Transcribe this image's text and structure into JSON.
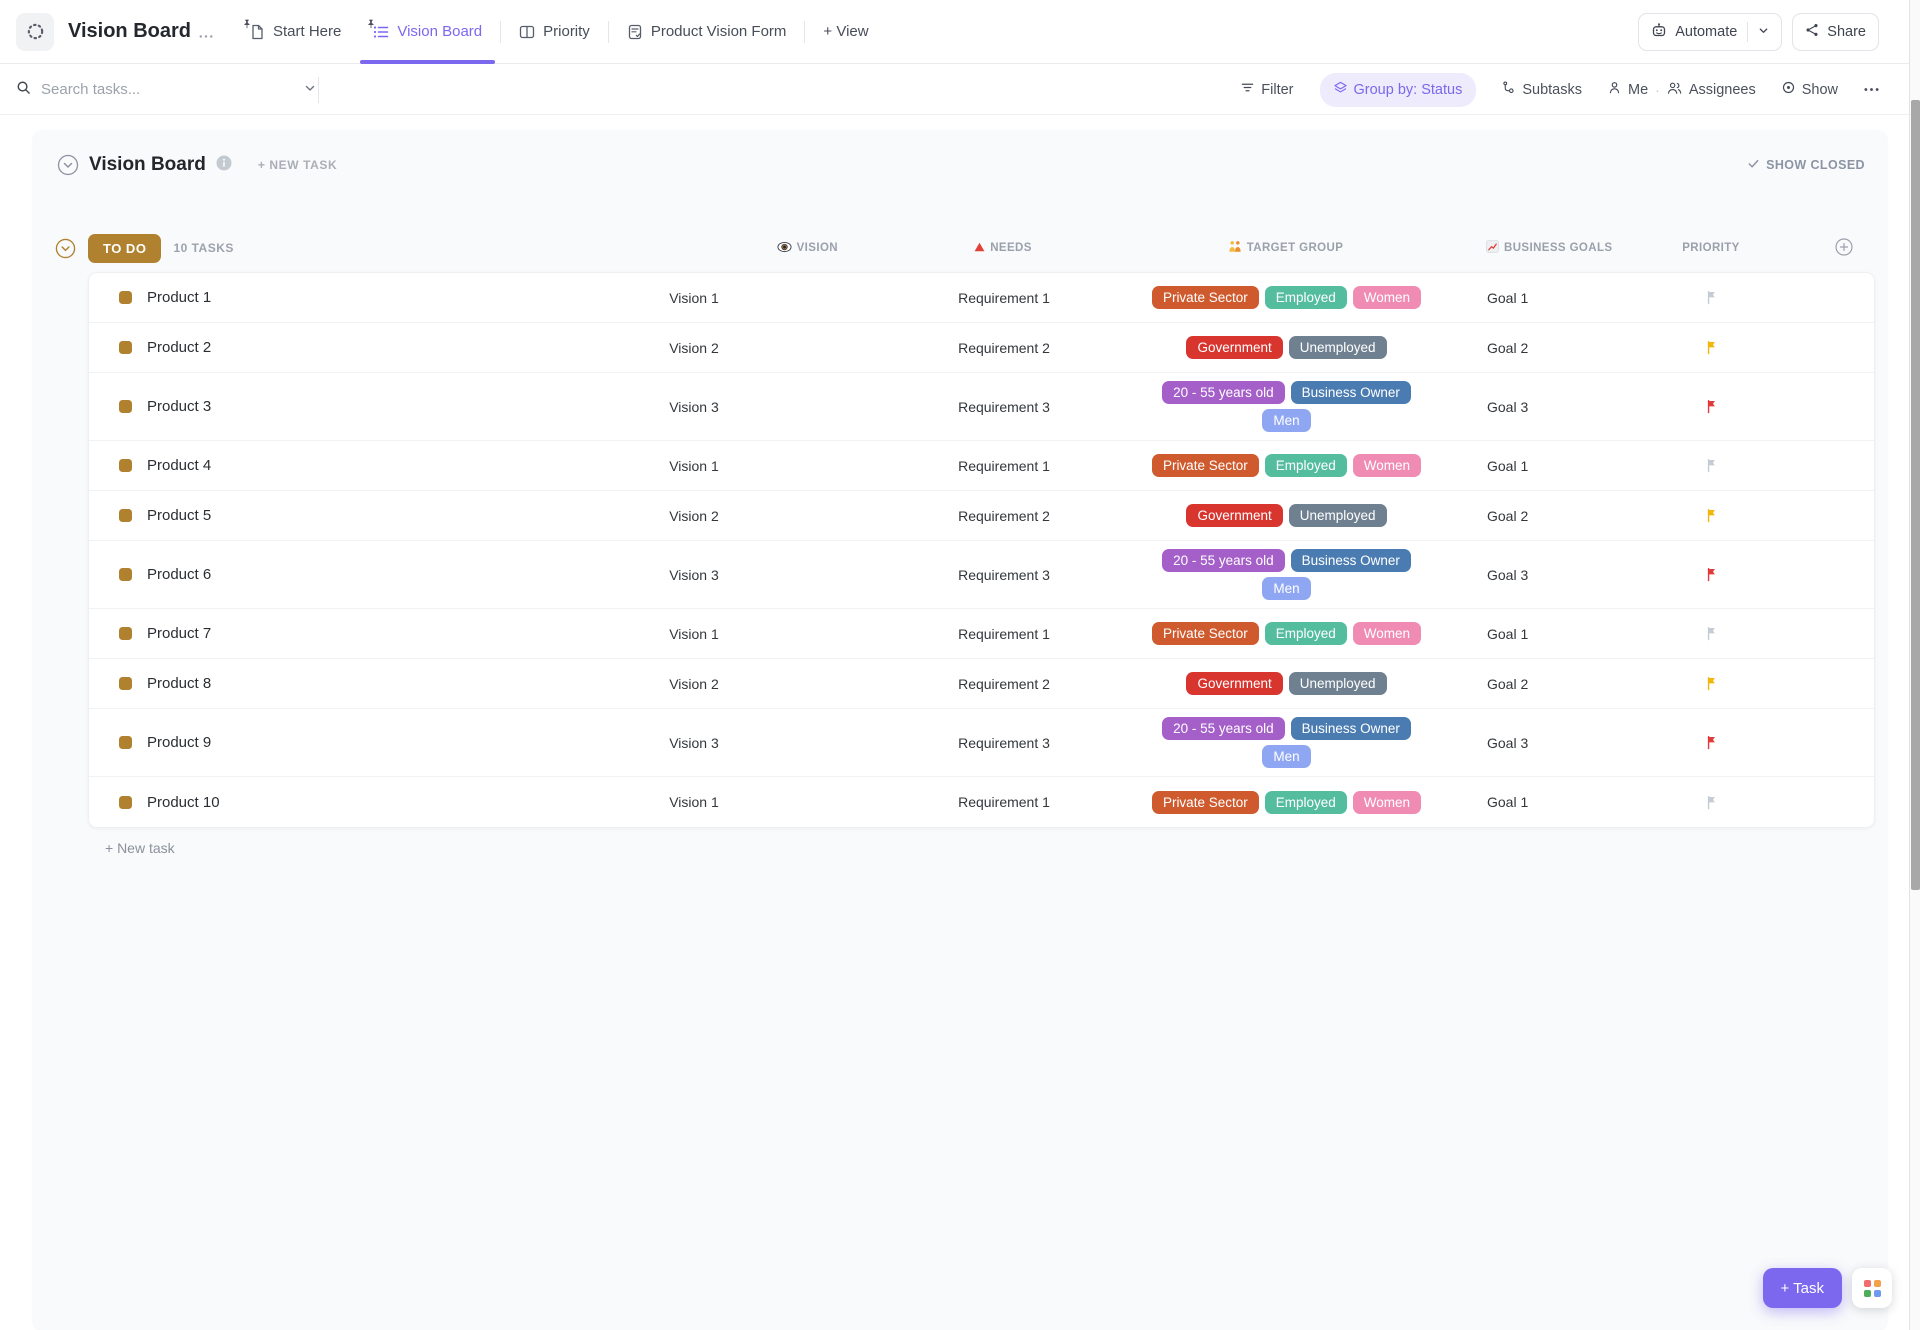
{
  "header": {
    "list_title": "Vision Board",
    "tabs": [
      {
        "label": "Start Here",
        "icon": "doc",
        "pinned": true,
        "active": false
      },
      {
        "label": "Vision Board",
        "icon": "list",
        "pinned": true,
        "active": true
      },
      {
        "label": "Priority",
        "icon": "board",
        "pinned": false,
        "active": false
      },
      {
        "label": "Product Vision Form",
        "icon": "form",
        "pinned": false,
        "active": false
      }
    ],
    "add_view": "+ View",
    "automate": "Automate",
    "share": "Share"
  },
  "toolbar": {
    "search_placeholder": "Search tasks...",
    "filter": "Filter",
    "group_by": "Group by: Status",
    "subtasks": "Subtasks",
    "me": "Me",
    "assignees": "Assignees",
    "show": "Show"
  },
  "board": {
    "title": "Vision Board",
    "new_task_top": "+ NEW TASK",
    "show_closed": "SHOW CLOSED",
    "group": {
      "label": "TO DO",
      "count": "10 TASKS"
    },
    "columns": [
      {
        "label": "VISION",
        "icon": "eye"
      },
      {
        "label": "NEEDS",
        "icon": "triangle"
      },
      {
        "label": "TARGET GROUP",
        "icon": "people"
      },
      {
        "label": "BUSINESS GOALS",
        "icon": "chart"
      },
      {
        "label": "PRIORITY",
        "icon": ""
      }
    ],
    "rows": [
      {
        "name": "Product 1",
        "vision": "Vision 1",
        "needs": "Requirement 1",
        "tag_lines": [
          [
            "Private Sector",
            "Employed",
            "Women"
          ]
        ],
        "goal": "Goal 1",
        "priority": "none"
      },
      {
        "name": "Product 2",
        "vision": "Vision 2",
        "needs": "Requirement 2",
        "tag_lines": [
          [
            "Government",
            "Unemployed"
          ]
        ],
        "goal": "Goal 2",
        "priority": "high"
      },
      {
        "name": "Product 3",
        "vision": "Vision 3",
        "needs": "Requirement 3",
        "tag_lines": [
          [
            "20 - 55 years old",
            "Business Owner"
          ],
          [
            "Men"
          ]
        ],
        "goal": "Goal 3",
        "priority": "urgent"
      },
      {
        "name": "Product 4",
        "vision": "Vision 1",
        "needs": "Requirement 1",
        "tag_lines": [
          [
            "Private Sector",
            "Employed",
            "Women"
          ]
        ],
        "goal": "Goal 1",
        "priority": "none"
      },
      {
        "name": "Product 5",
        "vision": "Vision 2",
        "needs": "Requirement 2",
        "tag_lines": [
          [
            "Government",
            "Unemployed"
          ]
        ],
        "goal": "Goal 2",
        "priority": "high"
      },
      {
        "name": "Product 6",
        "vision": "Vision 3",
        "needs": "Requirement 3",
        "tag_lines": [
          [
            "20 - 55 years old",
            "Business Owner"
          ],
          [
            "Men"
          ]
        ],
        "goal": "Goal 3",
        "priority": "urgent"
      },
      {
        "name": "Product 7",
        "vision": "Vision 1",
        "needs": "Requirement 1",
        "tag_lines": [
          [
            "Private Sector",
            "Employed",
            "Women"
          ]
        ],
        "goal": "Goal 1",
        "priority": "none"
      },
      {
        "name": "Product 8",
        "vision": "Vision 2",
        "needs": "Requirement 2",
        "tag_lines": [
          [
            "Government",
            "Unemployed"
          ]
        ],
        "goal": "Goal 2",
        "priority": "high"
      },
      {
        "name": "Product 9",
        "vision": "Vision 3",
        "needs": "Requirement 3",
        "tag_lines": [
          [
            "20 - 55 years old",
            "Business Owner"
          ],
          [
            "Men"
          ]
        ],
        "goal": "Goal 3",
        "priority": "urgent"
      },
      {
        "name": "Product 10",
        "vision": "Vision 1",
        "needs": "Requirement 1",
        "tag_lines": [
          [
            "Private Sector",
            "Employed",
            "Women"
          ]
        ],
        "goal": "Goal 1",
        "priority": "none"
      }
    ],
    "new_task_bottom": "+ New task"
  },
  "fab": {
    "task": "+ Task"
  },
  "colors": {
    "accent": "#7b68ee",
    "status_todo": "#b0822f",
    "priority_flags": {
      "none": "#c6ccd5",
      "high": "#f2b70d",
      "urgent": "#e23b3b"
    },
    "tag_colors": {
      "Private Sector": "#cf5a2e",
      "Employed": "#54bd9e",
      "Women": "#f08cb4",
      "Government": "#d8352f",
      "Unemployed": "#6f8091",
      "20 - 55 years old": "#a55fc9",
      "Business Owner": "#4b7cb1",
      "Men": "#8fa7f3"
    }
  }
}
